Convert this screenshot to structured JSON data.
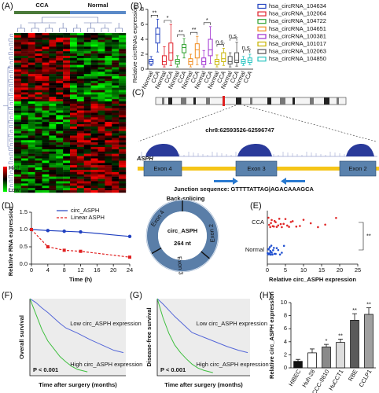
{
  "chart_data": [
    {
      "type": "heatmap",
      "panel": "(A)",
      "groups": [
        "CCA",
        "Normal"
      ],
      "scale_labels": [
        "High",
        "Low"
      ]
    },
    {
      "type": "box",
      "panel": "(B)",
      "ylabel": "Relative circRNAs expression",
      "categories": [
        "Normal",
        "CCA"
      ],
      "ylim": [
        0,
        8
      ],
      "yticks": [
        0,
        2,
        4,
        6,
        8
      ],
      "series": [
        {
          "name": "hsa_circRNA_104634",
          "color": "#1f3fbf",
          "significance": "**",
          "values": [
            [
              0.5,
              0.7,
              1,
              1.3,
              1.7
            ],
            [
              2.3,
              3.5,
              4.7,
              5.5,
              6.7
            ]
          ]
        },
        {
          "name": "hsa_circRNA_102064",
          "color": "#e0202a",
          "significance": "*",
          "values": [
            [
              0.3,
              0.6,
              1,
              1.8,
              3
            ],
            [
              0.5,
              1.2,
              2.2,
              3.5,
              6
            ]
          ]
        },
        {
          "name": "hsa_circRNA_104722",
          "color": "#2ca02c",
          "significance": "**",
          "values": [
            [
              0.3,
              0.7,
              1,
              1.3,
              1.8
            ],
            [
              1.5,
              2.2,
              2.9,
              3.3,
              4.1
            ]
          ]
        },
        {
          "name": "hsa_circRNA_104651",
          "color": "#f08a1c",
          "significance": "**",
          "values": [
            [
              0.3,
              0.6,
              1,
              1.4,
              2
            ],
            [
              0.6,
              1.5,
              2.6,
              3.4,
              4.4
            ]
          ]
        },
        {
          "name": "hsa_circRNA_100381",
          "color": "#a030d0",
          "significance": "*",
          "values": [
            [
              0.3,
              0.6,
              1,
              1.5,
              2.5
            ],
            [
              0.8,
              1.8,
              2.6,
              4,
              5.7
            ]
          ]
        },
        {
          "name": "hsa_circRNA_101017",
          "color": "#c8b400",
          "significance": "n.s.",
          "values": [
            [
              0.3,
              0.6,
              1,
              1.3,
              1.9
            ],
            [
              0.5,
              1,
              1.4,
              2.2,
              2.8
            ]
          ]
        },
        {
          "name": "hsa_circRNA_102063",
          "color": "#555555",
          "significance": "n.s.",
          "values": [
            [
              0.3,
              0.7,
              1,
              1.7,
              2.2
            ],
            [
              0.4,
              0.9,
              1.2,
              2.2,
              3.6
            ]
          ]
        },
        {
          "name": "hsa_circRNA_104850",
          "color": "#27c4c0",
          "significance": "n.s.",
          "values": [
            [
              0.5,
              0.8,
              1,
              1.3,
              1.7
            ],
            [
              0.6,
              0.9,
              1.2,
              1.5,
              2
            ]
          ]
        }
      ]
    },
    {
      "type": "diagram",
      "panel": "(C)",
      "locus": "chr8:62593526-62596747",
      "gene": "ASPH",
      "exons": [
        "Exon 4",
        "Exon 3",
        "Exon 2"
      ],
      "junction": "Junction sequence: GTTTTATTAG|AGACAAAGCA",
      "splicing": "Back-splicing",
      "circ_name": "circ_ASPH",
      "circ_length": "264 nt"
    },
    {
      "type": "line",
      "panel": "(D)",
      "xlabel": "Time (h)",
      "ylabel": "Relative RNA expression",
      "xlim": [
        0,
        24
      ],
      "xticks": [
        0,
        4,
        8,
        12,
        16,
        20,
        24
      ],
      "ylim": [
        0,
        1.5
      ],
      "yticks": [
        {
          "value": 0,
          "label": "0.0"
        },
        {
          "value": 0.5,
          "label": "0.5"
        },
        {
          "value": 1,
          "label": "1.0"
        },
        {
          "value": 1.5,
          "label": "1.5"
        }
      ],
      "x": [
        0,
        4,
        8,
        12,
        24
      ],
      "series": [
        {
          "name": "circ_ASPH",
          "color": "#2040c0",
          "values": [
            1,
            0.97,
            0.95,
            0.93,
            0.8
          ]
        },
        {
          "name": "Linear ASPH",
          "color": "#e02020",
          "values": [
            1,
            0.5,
            0.4,
            0.37,
            0.2
          ]
        }
      ]
    },
    {
      "type": "dot",
      "panel": "(E)",
      "xlabel": "Relative circ_ASPH expression",
      "xlim": [
        0,
        25
      ],
      "xticks": [
        0,
        5,
        10,
        15,
        20,
        25
      ],
      "significance": "**",
      "series": [
        {
          "name": "CCA",
          "color": "#e02828",
          "values": [
            0.3,
            0.5,
            0.8,
            1,
            1.2,
            1.5,
            1.8,
            2,
            2.3,
            2.6,
            3,
            3.3,
            3.7,
            4,
            4.5,
            5,
            5.5,
            6,
            6.5,
            7,
            8,
            9,
            10,
            12,
            14,
            16,
            19
          ]
        },
        {
          "name": "Normal",
          "color": "#2050d0",
          "values": [
            0.1,
            0.2,
            0.3,
            0.4,
            0.5,
            0.6,
            0.7,
            0.8,
            0.9,
            1,
            1.1,
            1.2,
            1.4,
            1.6,
            1.8,
            2,
            2.3,
            2.6,
            3,
            3.5,
            4,
            4.6
          ]
        }
      ]
    },
    {
      "type": "survival",
      "panel": "(F)",
      "ylabel": "Overall survival",
      "xlabel": "Time after surgery (months)",
      "p_label": "P < 0.001",
      "xlim": [
        0,
        80
      ],
      "ylim": [
        0,
        1
      ],
      "series": [
        {
          "name": "Low circ_ASPH expression",
          "color": "#5567d8",
          "x": [
            0,
            5,
            10,
            15,
            20,
            25,
            30,
            40,
            50,
            60,
            70,
            78
          ],
          "values": [
            1,
            0.95,
            0.88,
            0.82,
            0.75,
            0.68,
            0.62,
            0.55,
            0.47,
            0.4,
            0.33,
            0.3
          ]
        },
        {
          "name": "High circ_ASPH expression",
          "color": "#3fbf3f",
          "x": [
            0,
            5,
            10,
            15,
            20,
            25,
            30,
            35,
            40,
            48
          ],
          "values": [
            1,
            0.8,
            0.6,
            0.45,
            0.35,
            0.25,
            0.18,
            0.12,
            0.08,
            0.05
          ]
        }
      ]
    },
    {
      "type": "survival",
      "panel": "(G)",
      "ylabel": "Disease-free survival",
      "xlabel": "Time after surgery (months)",
      "p_label": "P < 0.001",
      "xlim": [
        0,
        80
      ],
      "ylim": [
        0,
        1
      ],
      "series": [
        {
          "name": "Low circ_ASPH expression",
          "color": "#5567d8",
          "x": [
            0,
            5,
            10,
            15,
            20,
            25,
            30,
            40,
            50,
            60,
            70,
            78
          ],
          "values": [
            1,
            0.93,
            0.85,
            0.77,
            0.7,
            0.63,
            0.56,
            0.5,
            0.44,
            0.38,
            0.33,
            0.3
          ]
        },
        {
          "name": "High circ_ASPH expression",
          "color": "#3fbf3f",
          "x": [
            0,
            5,
            10,
            15,
            20,
            25,
            30,
            35,
            40,
            48
          ],
          "values": [
            1,
            0.75,
            0.55,
            0.4,
            0.3,
            0.22,
            0.15,
            0.1,
            0.07,
            0.04
          ]
        }
      ]
    },
    {
      "type": "bar",
      "panel": "(H)",
      "ylabel": "Relative circ_ASPH expression",
      "ylim": [
        0,
        10
      ],
      "yticks": [
        0,
        2,
        4,
        6,
        8,
        10
      ],
      "categories": [
        "HIBEC",
        "Huh-28",
        "HCCC-9810",
        "HuCCT1",
        "RBE",
        "CCLP1"
      ],
      "values": [
        1,
        2.3,
        3.2,
        3.9,
        7.3,
        8.2
      ],
      "errors": [
        0.3,
        0.6,
        0.4,
        0.5,
        1,
        1
      ],
      "colors": [
        "#111111",
        "#ffffff",
        "#8a8a8a",
        "#dddddd",
        "#5a5a5a",
        "#a0a0a0"
      ],
      "significance": [
        null,
        null,
        "*",
        "**",
        "**",
        "**"
      ]
    }
  ]
}
